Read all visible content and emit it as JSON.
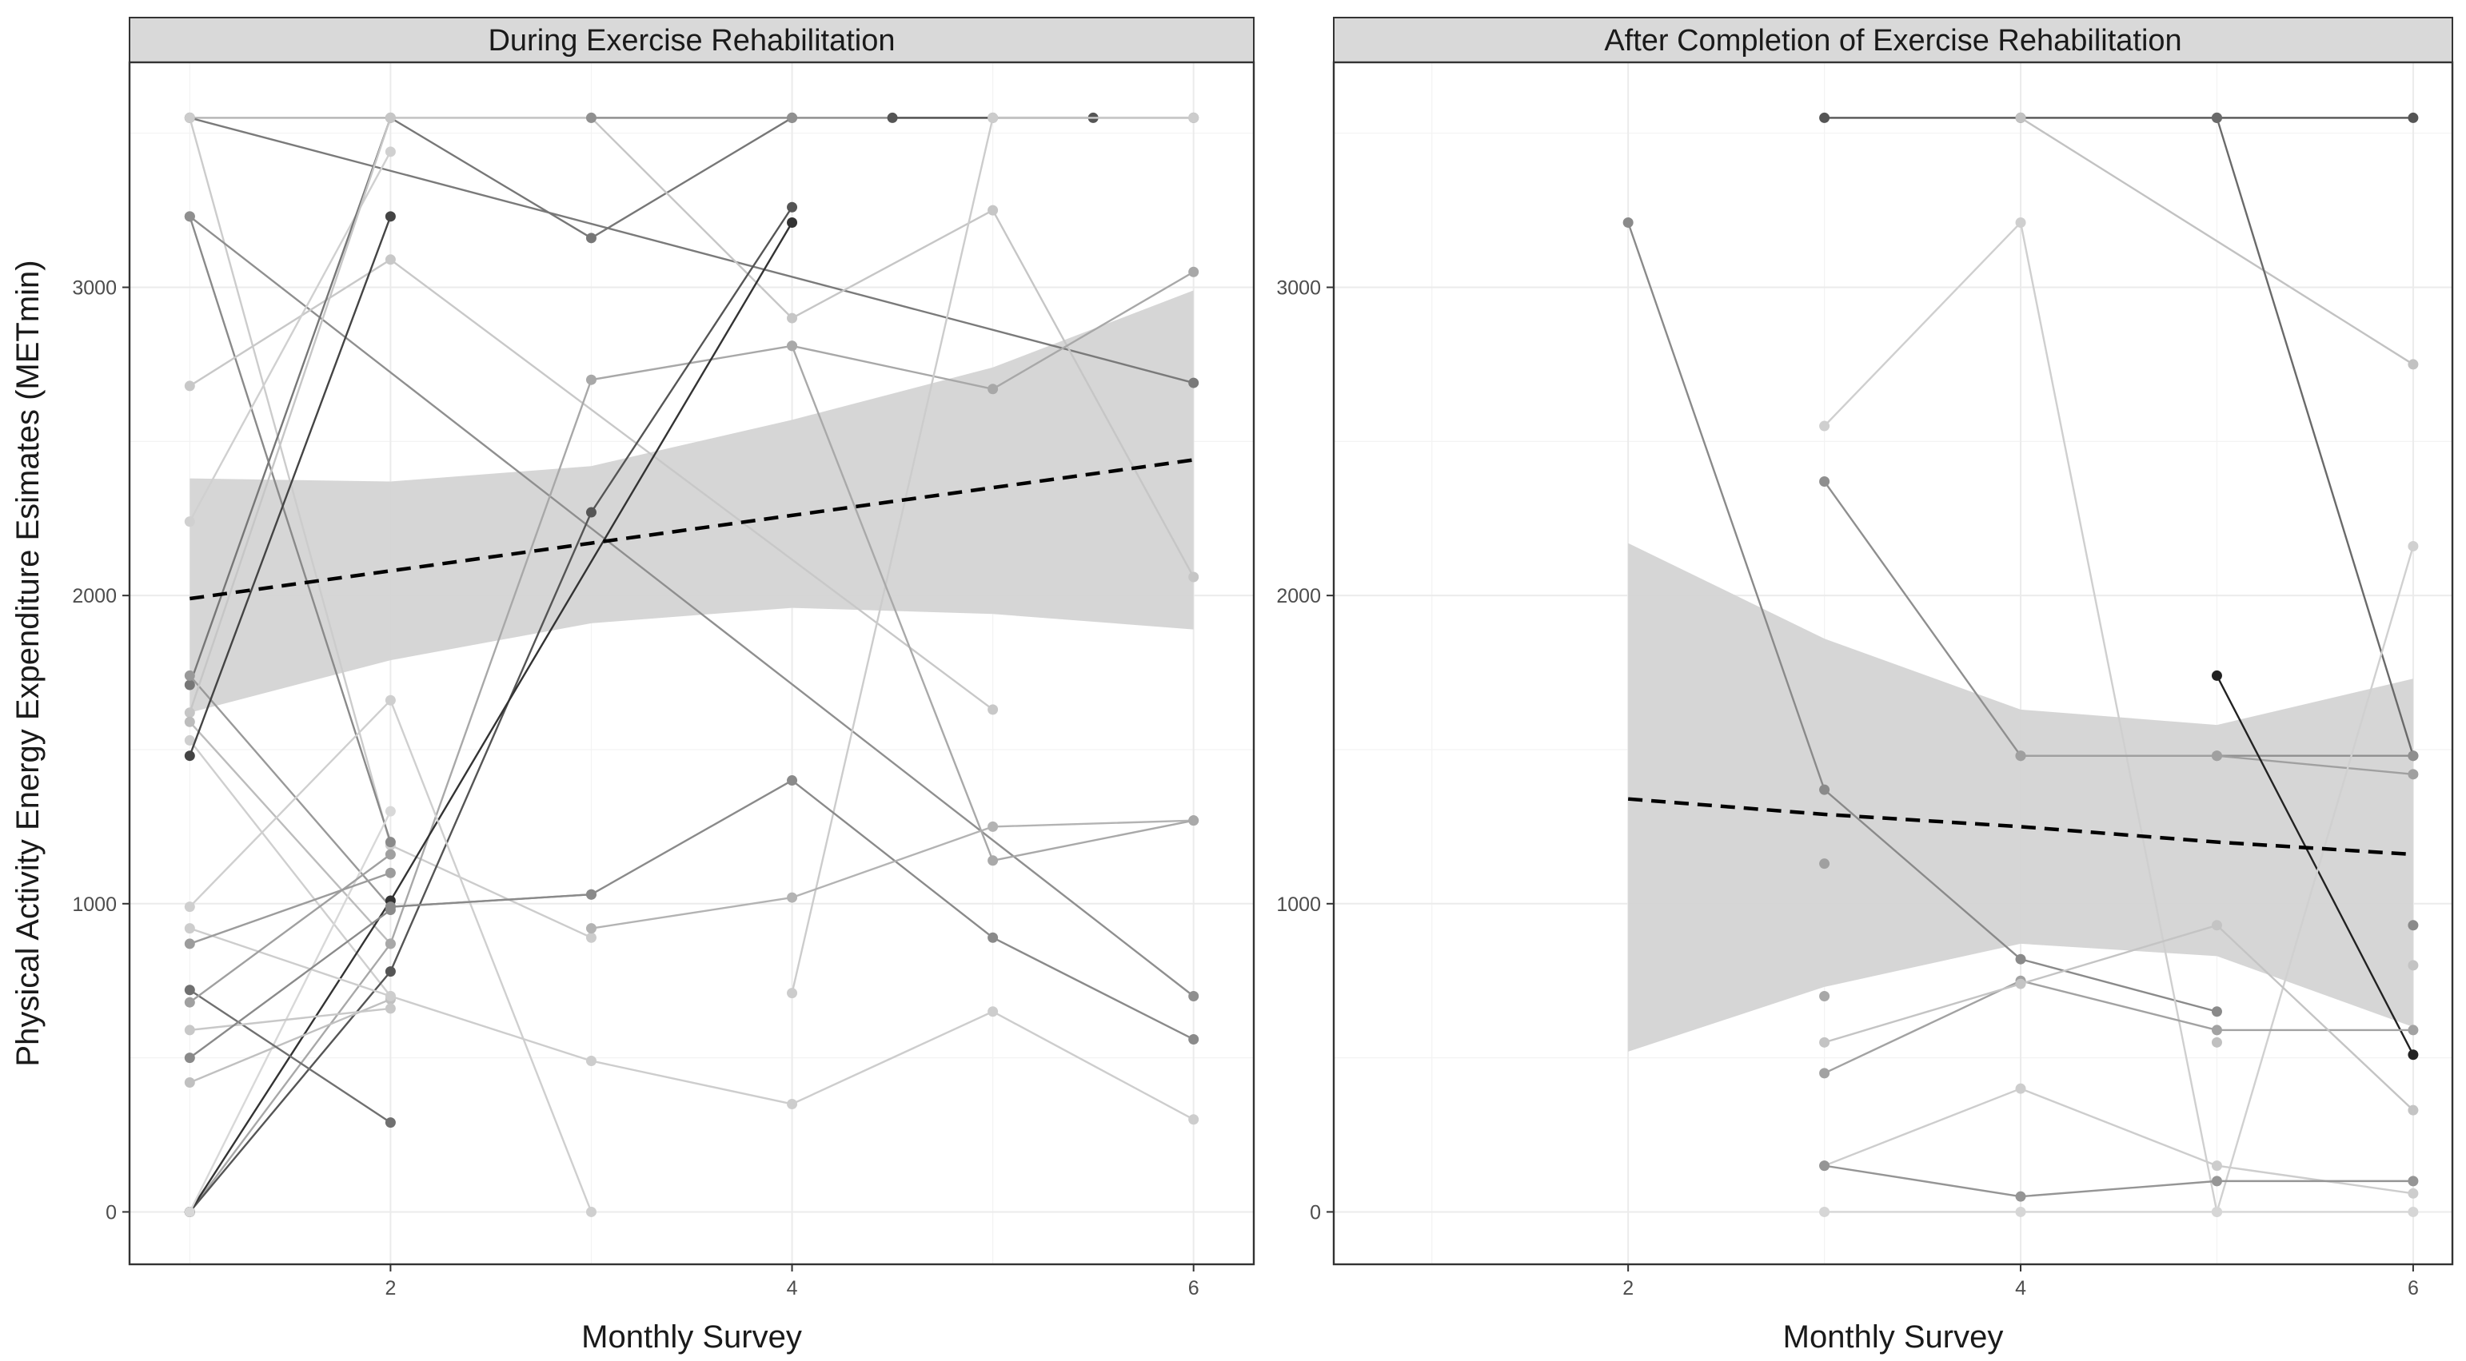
{
  "chart_data": {
    "type": "line",
    "ylabel": "Physical Activity Energy Expenditure  Esimates (METmin)",
    "xlabel": "Monthly  Survey",
    "legend": "none",
    "grid": true,
    "shared_y_axis": true,
    "yticks": [
      0,
      1000,
      2000,
      3000
    ],
    "style": {
      "panel_border": "#333333",
      "strip_fill": "#d9d9d9",
      "grid_color": "#ebebeb",
      "ribbon_fill": "#d4d4d4",
      "trend_color": "#000000"
    },
    "panels": [
      {
        "title": "During Exercise Rehabilitation",
        "xlim": [
          0.7,
          6.3
        ],
        "ylim": [
          -170,
          3730
        ],
        "xticks": [
          2,
          4,
          6
        ],
        "trend": {
          "x": [
            1,
            2,
            3,
            4,
            5,
            6
          ],
          "y": [
            1990,
            2080,
            2170,
            2260,
            2350,
            2440
          ]
        },
        "ribbon": {
          "x": [
            1,
            2,
            3,
            4,
            5,
            6
          ],
          "upper": [
            2380,
            2370,
            2420,
            2570,
            2740,
            2990
          ],
          "lower": [
            1620,
            1790,
            1910,
            1960,
            1940,
            1890
          ]
        },
        "series": [
          {
            "x": [
              1,
              4,
              6
            ],
            "y": [
              3550,
              3550,
              3550
            ],
            "shade": "#b3b3b3"
          },
          {
            "x": [
              1,
              6
            ],
            "y": [
              3550,
              2690
            ],
            "shade": "#7a7a7a"
          },
          {
            "x": [
              1,
              2,
              3
            ],
            "y": [
              3550,
              1190,
              890
            ],
            "shade": "#cccccc"
          },
          {
            "x": [
              1,
              2
            ],
            "y": [
              3230,
              1200
            ],
            "shade": "#8a8a8a"
          },
          {
            "x": [
              1,
              6
            ],
            "y": [
              3230,
              700
            ],
            "shade": "#8f8f8f"
          },
          {
            "x": [
              1,
              2,
              5
            ],
            "y": [
              2680,
              3090,
              1630
            ],
            "shade": "#c8c8c8"
          },
          {
            "x": [
              1,
              2
            ],
            "y": [
              2240,
              3440
            ],
            "shade": "#d0d0d0"
          },
          {
            "x": [
              1,
              2,
              3,
              4
            ],
            "y": [
              1710,
              3550,
              3160,
              3550
            ],
            "shade": "#777777"
          },
          {
            "x": [
              1,
              2,
              3
            ],
            "y": [
              1740,
              990,
              1030
            ],
            "shade": "#999999"
          },
          {
            "x": [
              1,
              2,
              3,
              4,
              5,
              6
            ],
            "y": [
              1620,
              3550,
              3550,
              2900,
              3250,
              2060
            ],
            "shade": "#c6c6c6"
          },
          {
            "x": [
              1,
              2
            ],
            "y": [
              1530,
              700
            ],
            "shade": "#cfcfcf"
          },
          {
            "x": [
              1,
              2
            ],
            "y": [
              1590,
              870
            ],
            "shade": "#bcbcbc"
          },
          {
            "x": [
              1,
              2
            ],
            "y": [
              1480,
              3230
            ],
            "shade": "#444444"
          },
          {
            "x": [
              1,
              2,
              3,
              4,
              5,
              6
            ],
            "y": [
              0,
              870,
              2700,
              2810,
              2670,
              3050
            ],
            "shade": "#a8a8a8"
          },
          {
            "x": [
              1,
              2,
              3,
              4
            ],
            "y": [
              0,
              780,
              2270,
              3260
            ],
            "shade": "#555555"
          },
          {
            "x": [
              1,
              2,
              4
            ],
            "y": [
              0,
              1010,
              3210
            ],
            "shade": "#333333"
          },
          {
            "x": [
              1,
              2
            ],
            "y": [
              0,
              1300
            ],
            "shade": "#d8d8d8"
          },
          {
            "x": [
              1,
              2,
              3
            ],
            "y": [
              990,
              1660,
              0
            ],
            "shade": "#cfcfcf"
          },
          {
            "x": [
              1,
              2
            ],
            "y": [
              420,
              690
            ],
            "shade": "#c0c0c0"
          },
          {
            "x": [
              1,
              2
            ],
            "y": [
              720,
              290
            ],
            "shade": "#707070"
          },
          {
            "x": [
              1,
              2,
              3,
              4,
              5,
              6
            ],
            "y": [
              920,
              700,
              490,
              350,
              650,
              300
            ],
            "shade": "#cdcdcd"
          },
          {
            "x": [
              1,
              2
            ],
            "y": [
              680,
              1160
            ],
            "shade": "#a0a0a0"
          },
          {
            "x": [
              1,
              2
            ],
            "y": [
              590,
              660
            ],
            "shade": "#c8c8c8"
          },
          {
            "x": [
              1,
              2
            ],
            "y": [
              500,
              980
            ],
            "shade": "#8a8a8a"
          },
          {
            "x": [
              1,
              2
            ],
            "y": [
              870,
              1100
            ],
            "shade": "#9c9c9c"
          },
          {
            "x": [
              3,
              4,
              5,
              6
            ],
            "y": [
              3550,
              3550,
              3550,
              3550
            ],
            "shade": "#909090"
          },
          {
            "x": [
              4.5,
              5.5
            ],
            "y": [
              3550,
              3550
            ],
            "shade": "#555555"
          },
          {
            "x": [
              4,
              5,
              6
            ],
            "y": [
              710,
              3550,
              3550
            ],
            "shade": "#cccccc"
          },
          {
            "x": [
              2,
              3,
              4,
              5,
              6
            ],
            "y": [
              990,
              1030,
              1400,
              890,
              560
            ],
            "shade": "#8a8a8a"
          },
          {
            "x": [
              3,
              4,
              5,
              6
            ],
            "y": [
              920,
              1020,
              1250,
              1270
            ],
            "shade": "#b3b3b3"
          },
          {
            "x": [
              4,
              5,
              6
            ],
            "y": [
              2810,
              1140,
              1270
            ],
            "shade": "#a9a9a9"
          }
        ]
      },
      {
        "title": "After Completion of Exercise Rehabilitation",
        "xlim": [
          0.5,
          6.2
        ],
        "ylim": [
          -170,
          3730
        ],
        "xticks": [
          2,
          4,
          6
        ],
        "trend": {
          "x": [
            2,
            3,
            4,
            5,
            6
          ],
          "y": [
            1340,
            1290,
            1250,
            1200,
            1160
          ]
        },
        "ribbon": {
          "x": [
            2,
            3,
            4,
            5,
            6
          ],
          "upper": [
            2170,
            1860,
            1630,
            1580,
            1730
          ],
          "lower": [
            520,
            730,
            870,
            830,
            600
          ]
        },
        "series": [
          {
            "x": [
              3,
              4,
              5,
              6
            ],
            "y": [
              3550,
              3550,
              3550,
              3550
            ],
            "shade": "#555555"
          },
          {
            "x": [
              4,
              6
            ],
            "y": [
              3550,
              2750
            ],
            "shade": "#c2c2c2"
          },
          {
            "x": [
              5,
              6
            ],
            "y": [
              3550,
              1480
            ],
            "shade": "#6a6a6a"
          },
          {
            "x": [
              2,
              3,
              4,
              5
            ],
            "y": [
              3210,
              1370,
              820,
              650
            ],
            "shade": "#8a8a8a"
          },
          {
            "x": [
              3,
              4,
              5
            ],
            "y": [
              2550,
              3210,
              0
            ],
            "shade": "#cfcfcf"
          },
          {
            "x": [
              3,
              4,
              5,
              6
            ],
            "y": [
              2370,
              1480,
              1480,
              1480
            ],
            "shade": "#8f8f8f"
          },
          {
            "x": [
              4,
              5,
              6
            ],
            "y": [
              1480,
              1480,
              1420
            ],
            "shade": "#a0a0a0"
          },
          {
            "x": [
              5,
              6
            ],
            "y": [
              1740,
              510
            ],
            "shade": "#222222"
          },
          {
            "x": [
              5,
              6
            ],
            "y": [
              0,
              2160
            ],
            "shade": "#d0d0d0"
          },
          {
            "x": [
              3,
              4,
              5,
              6
            ],
            "y": [
              450,
              750,
              590,
              590
            ],
            "shade": "#a2a2a2"
          },
          {
            "x": [
              3,
              4,
              5,
              6
            ],
            "y": [
              550,
              740,
              930,
              330
            ],
            "shade": "#c4c4c4"
          },
          {
            "x": [
              3,
              4,
              5,
              6
            ],
            "y": [
              150,
              400,
              150,
              60
            ],
            "shade": "#cdcdcd"
          },
          {
            "x": [
              3,
              4,
              5,
              6
            ],
            "y": [
              150,
              50,
              100,
              100
            ],
            "shade": "#959595"
          },
          {
            "x": [
              3,
              4,
              5,
              6
            ],
            "y": [
              0,
              0,
              0,
              0
            ],
            "shade": "#d6d6d6"
          },
          {
            "x": [
              3
            ],
            "y": [
              1130
            ],
            "shade": "#a0a0a0"
          },
          {
            "x": [
              3
            ],
            "y": [
              700
            ],
            "shade": "#a8a8a8"
          },
          {
            "x": [
              5
            ],
            "y": [
              550
            ],
            "shade": "#c0c0c0"
          },
          {
            "x": [
              6
            ],
            "y": [
              930
            ],
            "shade": "#8a8a8a"
          },
          {
            "x": [
              6
            ],
            "y": [
              800
            ],
            "shade": "#c4c4c4"
          }
        ]
      }
    ]
  }
}
